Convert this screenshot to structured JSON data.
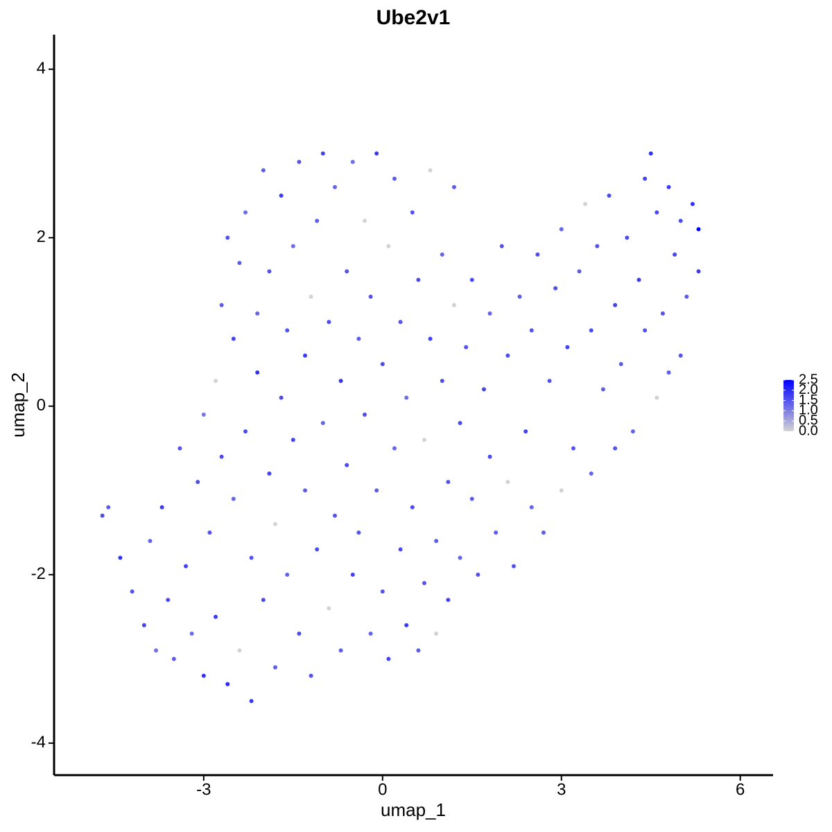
{
  "chart_data": {
    "type": "scatter",
    "title": "Ube2v1",
    "x_label": "umap_1",
    "y_label": "umap_2",
    "xlim": [
      -5.51,
      6.55
    ],
    "ylim": [
      -4.38,
      4.41
    ],
    "xticks": [
      -3,
      0,
      3,
      6
    ],
    "yticks": [
      -4,
      -2,
      0,
      2,
      4
    ],
    "grid": false,
    "color_low": "#d3d3d3",
    "color_high": "#0000ff",
    "color_range": [
      0,
      2.5
    ],
    "colorbar_ticks": [
      {
        "value": 0,
        "label": "0.0"
      },
      {
        "value": 0.5,
        "label": "0.5"
      },
      {
        "value": 1,
        "label": "1.0"
      },
      {
        "value": 1.5,
        "label": "1.5"
      },
      {
        "value": 2,
        "label": "2.0"
      },
      {
        "value": 2.5,
        "label": "2.5"
      }
    ],
    "x": [
      -4.7,
      -4.6,
      -4.4,
      -4.2,
      -4.0,
      -3.9,
      -3.8,
      -3.7,
      -3.6,
      -3.5,
      -3.4,
      -3.3,
      -3.2,
      -3.1,
      -3.0,
      -3.0,
      -2.9,
      -2.8,
      -2.8,
      -2.7,
      -2.7,
      -2.6,
      -2.6,
      -2.5,
      -2.5,
      -2.4,
      -2.4,
      -2.3,
      -2.3,
      -2.2,
      -2.2,
      -2.1,
      -2.1,
      -2.0,
      -2.0,
      -1.9,
      -1.9,
      -1.8,
      -1.8,
      -1.7,
      -1.7,
      -1.6,
      -1.6,
      -1.5,
      -1.5,
      -1.4,
      -1.4,
      -1.3,
      -1.3,
      -1.2,
      -1.2,
      -1.1,
      -1.1,
      -1.0,
      -1.0,
      -0.9,
      -0.9,
      -0.8,
      -0.8,
      -0.7,
      -0.7,
      -0.6,
      -0.6,
      -0.5,
      -0.5,
      -0.4,
      -0.4,
      -0.3,
      -0.3,
      -0.2,
      -0.2,
      -0.1,
      -0.1,
      0.0,
      0.0,
      0.1,
      0.1,
      0.2,
      0.2,
      0.3,
      0.3,
      0.4,
      0.4,
      0.5,
      0.5,
      0.6,
      0.6,
      0.7,
      0.7,
      0.8,
      0.8,
      0.9,
      0.9,
      1.0,
      1.0,
      1.1,
      1.1,
      1.2,
      1.2,
      1.3,
      1.3,
      1.4,
      1.5,
      1.5,
      1.6,
      1.7,
      1.8,
      1.8,
      1.9,
      2.0,
      2.1,
      2.1,
      2.2,
      2.3,
      2.4,
      2.5,
      2.5,
      2.6,
      2.7,
      2.8,
      2.9,
      3.0,
      3.0,
      3.1,
      3.2,
      3.3,
      3.4,
      3.5,
      3.5,
      3.6,
      3.7,
      3.8,
      3.9,
      3.9,
      4.0,
      4.1,
      4.2,
      4.3,
      4.4,
      4.4,
      4.5,
      4.6,
      4.6,
      4.7,
      4.8,
      4.8,
      4.9,
      5.0,
      5.0,
      5.1,
      5.2,
      5.3,
      5.3
    ],
    "y": [
      -1.3,
      -1.2,
      -1.8,
      -2.2,
      -2.6,
      -1.6,
      -2.9,
      -1.2,
      -2.3,
      -3.0,
      -0.5,
      -1.9,
      -2.7,
      -0.9,
      -3.2,
      -0.1,
      -1.5,
      0.3,
      -2.5,
      1.2,
      -0.6,
      2.0,
      -3.3,
      -1.1,
      0.8,
      1.7,
      -2.9,
      -0.3,
      2.3,
      -3.5,
      -1.8,
      0.4,
      1.1,
      -2.3,
      2.8,
      -0.8,
      1.6,
      -3.1,
      -1.4,
      0.1,
      2.5,
      -2.0,
      0.9,
      -0.4,
      1.9,
      -2.7,
      2.9,
      -1.0,
      0.6,
      1.3,
      -3.2,
      -1.7,
      2.2,
      -0.2,
      3.0,
      -2.4,
      1.0,
      -1.3,
      2.6,
      0.3,
      -2.9,
      1.6,
      -0.7,
      2.9,
      -2.0,
      0.8,
      -1.5,
      2.2,
      -0.1,
      -2.7,
      1.3,
      3.0,
      -1.0,
      0.5,
      -2.2,
      1.9,
      -3.0,
      -0.5,
      2.7,
      -1.7,
      1.0,
      -2.6,
      0.1,
      2.3,
      -1.2,
      -2.9,
      1.5,
      -0.4,
      -2.1,
      0.8,
      2.8,
      -1.6,
      -2.7,
      0.3,
      1.8,
      -0.9,
      -2.3,
      1.2,
      2.6,
      -0.2,
      -1.8,
      0.7,
      1.5,
      -1.1,
      -2.0,
      0.2,
      1.1,
      -0.6,
      -1.5,
      1.9,
      0.6,
      -0.9,
      -1.9,
      1.3,
      -0.3,
      0.9,
      -1.2,
      1.8,
      -1.5,
      0.3,
      1.4,
      2.1,
      -1.0,
      0.7,
      -0.5,
      1.6,
      2.4,
      -0.8,
      0.9,
      1.9,
      0.2,
      2.5,
      -0.5,
      1.2,
      0.5,
      2.0,
      -0.3,
      1.5,
      0.9,
      2.7,
      3.0,
      0.1,
      2.3,
      1.1,
      2.6,
      0.4,
      1.8,
      2.2,
      0.6,
      1.3,
      2.4,
      2.1,
      1.6
    ],
    "expression": [
      1.6,
      1.4,
      1.9,
      1.5,
      1.7,
      1.3,
      1.2,
      1.8,
      1.6,
      1.4,
      1.5,
      1.7,
      1.2,
      1.6,
      1.9,
      1.1,
      1.5,
      0.0,
      1.8,
      1.4,
      1.6,
      1.5,
      2.0,
      1.3,
      1.7,
      1.4,
      0.0,
      1.6,
      1.2,
      1.8,
      1.5,
      1.9,
      1.3,
      1.6,
      1.4,
      1.7,
      1.5,
      1.4,
      0.0,
      1.6,
      1.8,
      1.3,
      1.5,
      1.7,
      1.2,
      1.6,
      1.5,
      1.4,
      1.8,
      0.0,
      1.5,
      1.6,
      1.4,
      1.3,
      1.7,
      0.0,
      1.6,
      1.5,
      1.3,
      1.9,
      1.4,
      1.5,
      1.6,
      1.2,
      1.7,
      1.4,
      1.5,
      0.0,
      1.6,
      1.3,
      1.5,
      1.8,
      1.4,
      1.6,
      1.5,
      0.0,
      1.7,
      1.3,
      1.4,
      1.6,
      1.5,
      1.8,
      1.2,
      1.5,
      1.6,
      1.4,
      1.6,
      0.0,
      1.5,
      1.7,
      0.0,
      1.4,
      0.0,
      1.6,
      1.3,
      1.5,
      1.7,
      0.0,
      1.4,
      1.6,
      1.3,
      1.5,
      1.6,
      1.4,
      1.5,
      1.7,
      1.3,
      1.6,
      1.4,
      1.5,
      1.6,
      0.0,
      1.5,
      1.4,
      1.7,
      1.5,
      1.3,
      1.6,
      1.4,
      1.5,
      1.6,
      1.3,
      0.0,
      1.7,
      1.5,
      1.4,
      0.0,
      1.3,
      1.6,
      1.5,
      1.4,
      1.6,
      1.5,
      1.7,
      1.4,
      1.6,
      1.3,
      1.8,
      1.5,
      1.7,
      1.9,
      0.0,
      1.6,
      1.5,
      1.8,
      1.4,
      1.7,
      1.6,
      1.5,
      1.4,
      1.9,
      2.5,
      1.8
    ]
  }
}
